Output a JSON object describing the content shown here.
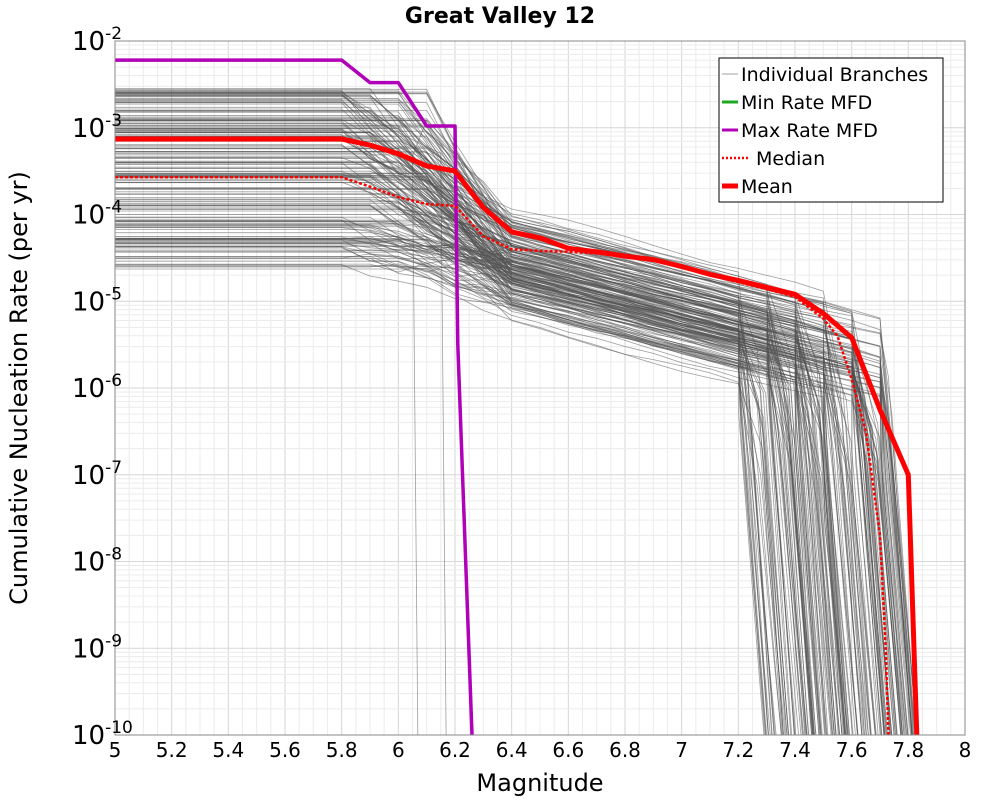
{
  "chart_data": {
    "type": "line",
    "title": "Great Valley 12",
    "xlabel": "Magnitude",
    "ylabel": "Cumulative Nucleation Rate (per yr)",
    "xlim": [
      5,
      8
    ],
    "ylim_log10": [
      -10,
      -2
    ],
    "yscale": "log",
    "grid": true,
    "x_ticks": [
      "5",
      "5.2",
      "5.4",
      "5.6",
      "5.8",
      "6",
      "6.2",
      "6.4",
      "6.6",
      "6.8",
      "7",
      "7.2",
      "7.4",
      "7.6",
      "7.8",
      "8"
    ],
    "y_ticks": [
      {
        "base": "10",
        "exp": "-2"
      },
      {
        "base": "10",
        "exp": "-3"
      },
      {
        "base": "10",
        "exp": "-4"
      },
      {
        "base": "10",
        "exp": "-5"
      },
      {
        "base": "10",
        "exp": "-6"
      },
      {
        "base": "10",
        "exp": "-7"
      },
      {
        "base": "10",
        "exp": "-8"
      },
      {
        "base": "10",
        "exp": "-9"
      },
      {
        "base": "10",
        "exp": "-10"
      }
    ],
    "legend": {
      "position": "top-right",
      "entries": [
        {
          "label": "Individual Branches",
          "color": "#a0a0a0",
          "style": "solid-thin"
        },
        {
          "label": "Min Rate MFD",
          "color": "#1fa81f",
          "style": "solid"
        },
        {
          "label": "Max Rate MFD",
          "color": "#b000b8",
          "style": "solid"
        },
        {
          "label": "Median",
          "color": "#ff0000",
          "style": "dotted"
        },
        {
          "label": "Mean",
          "color": "#ff0000",
          "style": "solid-thick"
        }
      ]
    },
    "series": [
      {
        "name": "Max Rate MFD",
        "color": "#b000b8",
        "x": [
          5.0,
          5.8,
          5.9,
          6.0,
          6.1,
          6.2,
          6.21,
          6.26
        ],
        "log10_y": [
          -2.22,
          -2.22,
          -2.48,
          -2.48,
          -2.98,
          -2.98,
          -5.5,
          -10.0
        ]
      },
      {
        "name": "Mean",
        "color": "#ff0000",
        "x": [
          5.0,
          5.8,
          5.9,
          6.0,
          6.1,
          6.2,
          6.3,
          6.4,
          6.5,
          6.6,
          6.7,
          6.8,
          6.9,
          7.0,
          7.1,
          7.2,
          7.3,
          7.4,
          7.5,
          7.6,
          7.7,
          7.8,
          7.83
        ],
        "log10_y": [
          -3.13,
          -3.13,
          -3.2,
          -3.3,
          -3.44,
          -3.5,
          -3.92,
          -4.2,
          -4.27,
          -4.39,
          -4.43,
          -4.48,
          -4.52,
          -4.6,
          -4.69,
          -4.76,
          -4.84,
          -4.92,
          -5.14,
          -5.42,
          -6.25,
          -7.0,
          -10.0
        ]
      },
      {
        "name": "Median",
        "color": "#ff0000",
        "x": [
          5.0,
          5.8,
          5.9,
          6.0,
          6.1,
          6.2,
          6.3,
          6.4,
          6.5,
          6.6,
          6.7,
          6.8,
          6.9,
          7.0,
          7.1,
          7.2,
          7.3,
          7.4,
          7.5,
          7.55,
          7.6,
          7.65,
          7.7,
          7.72,
          7.73
        ],
        "log10_y": [
          -3.57,
          -3.57,
          -3.68,
          -3.8,
          -3.88,
          -3.9,
          -4.25,
          -4.4,
          -4.42,
          -4.43,
          -4.45,
          -4.48,
          -4.53,
          -4.6,
          -4.7,
          -4.78,
          -4.86,
          -4.95,
          -5.2,
          -5.4,
          -5.9,
          -6.5,
          -7.7,
          -9.0,
          -10.0
        ]
      }
    ],
    "branch_envelope": {
      "name": "Individual Branches",
      "color": "#505050",
      "count": 200,
      "plateau_log10_range": [
        -4.65,
        -2.55
      ],
      "knee_magnitudes": [
        5.8,
        5.9,
        6.0,
        6.1,
        6.2,
        6.3
      ],
      "mid_log10_range": [
        -5.25,
        -3.95
      ],
      "cutoff_magnitude_range": [
        7.3,
        7.85
      ],
      "early_cutoff_magnitudes": [
        6.05,
        6.15,
        6.35
      ]
    }
  }
}
